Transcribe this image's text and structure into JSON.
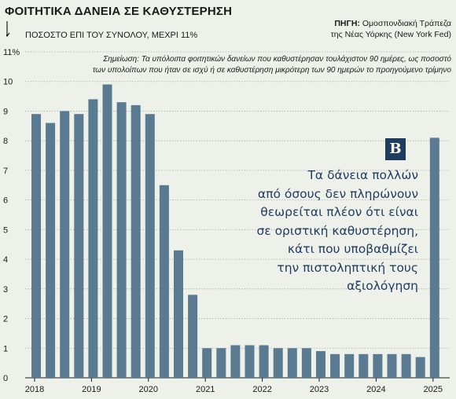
{
  "header": {
    "title": "ΦΟΙΤΗΤΙΚΑ ΔΑΝΕΙΑ ΣΕ ΚΑΘΥΣΤΕΡΗΣΗ",
    "subtitle": "ΠΟΣΟΣΤΟ ΕΠΙ ΤΟΥ ΣΥΝΟΛΟΥ, ΜΕΧΡΙ 11%",
    "source_label": "ΠΗΓΗ:",
    "source_line1": "Ομοσπονδιακή Τράπεζα",
    "source_line2": "της Νέας Υόρκης (New York Fed)",
    "note_line1": "Σημείωση: Τα υπόλοιπα φοιτητικών δανείων που καθυστέρησαν τουλάχιστον 90 ημέρες, ως ποσοστό",
    "note_line2": "των υπολοίπων που ήταν σε ισχύ ή σε καθυστέρηση μικρότερη των 90 ημερών το προηγούμενο τρίμηνο"
  },
  "badge": {
    "letter": "B"
  },
  "callout": {
    "lines": [
      "Τα δάνεια πολλών",
      "από όσους δεν πληρώνουν",
      "θεωρείται πλέον ότι είναι",
      "σε οριστική καθυστέρηση,",
      "κάτι που υποβαθμίζει",
      "την πιστοληπτική τους",
      "αξιολόγηση"
    ]
  },
  "colors": {
    "bar": "#5a7a92",
    "background": "#eef1ea",
    "grid": "#9aa0a0",
    "callout": "#1f3b5e"
  },
  "chart_data": {
    "type": "bar",
    "ylim": [
      0,
      11
    ],
    "y_ticks": [
      "0",
      "1",
      "2",
      "3",
      "4",
      "5",
      "6",
      "7",
      "8",
      "9",
      "10",
      "11%"
    ],
    "x_tick_labels": [
      "2018",
      "2019",
      "2020",
      "2021",
      "2022",
      "2023",
      "2024",
      "2025"
    ],
    "values": [
      8.9,
      8.6,
      9.0,
      8.9,
      9.4,
      9.9,
      9.3,
      9.2,
      8.9,
      6.5,
      4.3,
      2.8,
      1.0,
      1.0,
      1.1,
      1.1,
      1.1,
      1.0,
      1.0,
      1.0,
      0.9,
      0.8,
      0.8,
      0.8,
      0.8,
      0.8,
      0.8,
      0.7,
      8.1
    ]
  }
}
